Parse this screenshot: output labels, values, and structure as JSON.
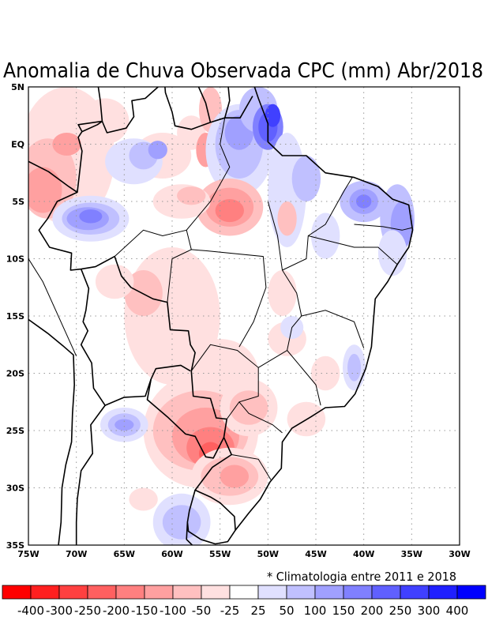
{
  "title": "Anomalia de Chuva Observada CPC (mm) Abr/2018",
  "note": "* Climatologia entre 2011 e 2018",
  "axes": {
    "lon_labels": [
      "75W",
      "70W",
      "65W",
      "60W",
      "55W",
      "50W",
      "45W",
      "40W",
      "35W",
      "30W"
    ],
    "lat_labels": [
      "5N",
      "EQ",
      "5S",
      "10S",
      "15S",
      "20S",
      "25S",
      "30S",
      "35S"
    ]
  },
  "colorbar": {
    "colors": [
      "#ff0000",
      "#ff2020",
      "#ff4040",
      "#ff6060",
      "#ff8080",
      "#ffa0a0",
      "#ffc0c0",
      "#ffe0e0",
      "#ffffff",
      "#e0e0ff",
      "#c0c0ff",
      "#a0a0ff",
      "#8080ff",
      "#6060ff",
      "#4040ff",
      "#2020ff",
      "#0000ff"
    ],
    "labels": [
      "-400",
      "-300",
      "-250",
      "-200",
      "-150",
      "-100",
      "-50",
      "-25",
      "25",
      "50",
      "100",
      "150",
      "200",
      "250",
      "300",
      "400"
    ]
  }
}
